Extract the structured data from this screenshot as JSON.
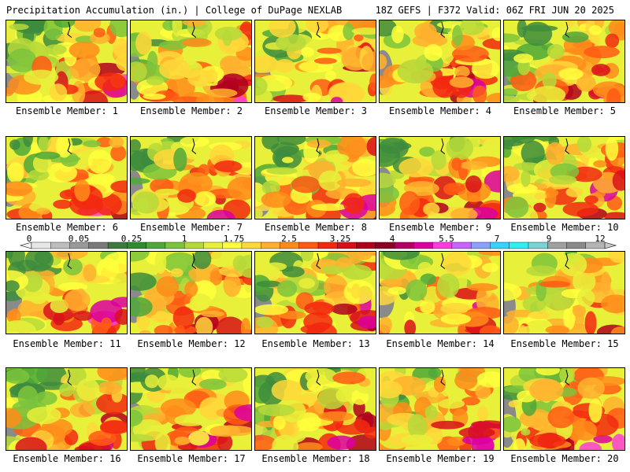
{
  "header": {
    "title_left": "Precipitation Accumulation (in.) | College of DuPage NEXLAB",
    "title_right": "18Z GEFS | F372 Valid: 06Z FRI JUN 20 2025"
  },
  "colorbar": {
    "tick_labels": [
      "0",
      "0.05",
      "0.25",
      "1",
      "1.75",
      "2.5",
      "3.25",
      "4",
      "5.5",
      "7",
      "9",
      "12"
    ],
    "colors": [
      "#e6e6e6",
      "#bdbdbd",
      "#9a9a9a",
      "#7a7a7a",
      "#3d7a3d",
      "#2e8b2e",
      "#4fa83a",
      "#7cc43c",
      "#b6d93a",
      "#e8f03a",
      "#ffff3c",
      "#ffd83a",
      "#ffb02e",
      "#ff8c1a",
      "#ff5a14",
      "#f22810",
      "#d8101a",
      "#b0001e",
      "#8c0028",
      "#b40064",
      "#dc00a0",
      "#ff3cdc",
      "#c864ff",
      "#8ca0ff",
      "#38d2ff",
      "#2ef0f0",
      "#7ad2d2",
      "#a0a0a0",
      "#8a8a8a",
      "#b4b4b4"
    ]
  },
  "members": [
    {
      "caption": "Ensemble Member: 1"
    },
    {
      "caption": "Ensemble Member: 2"
    },
    {
      "caption": "Ensemble Member: 3"
    },
    {
      "caption": "Ensemble Member: 4"
    },
    {
      "caption": "Ensemble Member: 5"
    },
    {
      "caption": "Ensemble Member: 6"
    },
    {
      "caption": "Ensemble Member: 7"
    },
    {
      "caption": "Ensemble Member: 8"
    },
    {
      "caption": "Ensemble Member: 9"
    },
    {
      "caption": "Ensemble Member: 10"
    },
    {
      "caption": "Ensemble Member: 11"
    },
    {
      "caption": "Ensemble Member: 12"
    },
    {
      "caption": "Ensemble Member: 13"
    },
    {
      "caption": "Ensemble Member: 14"
    },
    {
      "caption": "Ensemble Member: 15"
    },
    {
      "caption": "Ensemble Member: 16"
    },
    {
      "caption": "Ensemble Member: 17"
    },
    {
      "caption": "Ensemble Member: 18"
    },
    {
      "caption": "Ensemble Member: 19"
    },
    {
      "caption": "Ensemble Member: 20"
    }
  ]
}
